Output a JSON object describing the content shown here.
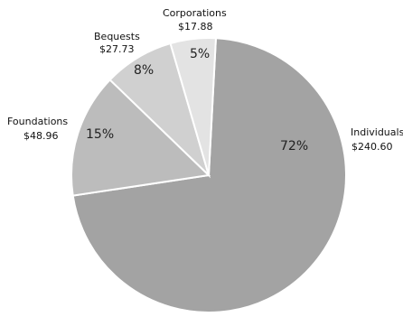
{
  "chart_data": {
    "type": "pie",
    "title": "",
    "slices": [
      {
        "name": "Individuals",
        "value": 240.6,
        "value_label": "$240.60",
        "percent_label": "72%",
        "color": "#a3a3a3"
      },
      {
        "name": "Foundations",
        "value": 48.96,
        "value_label": "$48.96",
        "percent_label": "15%",
        "color": "#bcbcbc"
      },
      {
        "name": "Bequests",
        "value": 27.73,
        "value_label": "$27.73",
        "percent_label": "8%",
        "color": "#d0d0d0"
      },
      {
        "name": "Corporations",
        "value": 17.88,
        "value_label": "$17.88",
        "percent_label": "5%",
        "color": "#e3e3e3"
      }
    ],
    "start_angle_deg": 3,
    "direction": "clockwise",
    "slice_border_color": "#ffffff"
  }
}
